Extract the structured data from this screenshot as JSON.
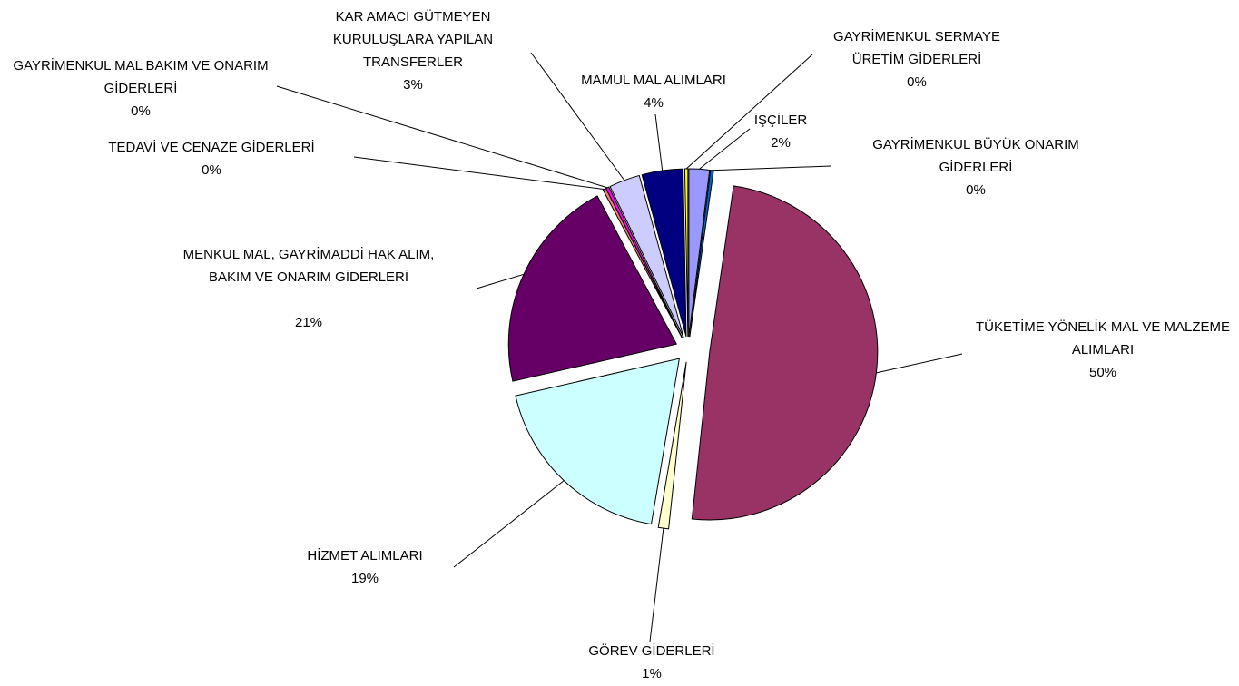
{
  "chart_data": {
    "type": "pie",
    "categories": [
      "İŞÇİLER",
      "GAYRİMENKUL BÜYÜK ONARIM GİDERLERİ",
      "TÜKETİME YÖNELİK MAL VE MALZEME ALIMLARI",
      "GÖREV GİDERLERİ",
      "HİZMET ALIMLARI",
      "MENKUL MAL, GAYRİMADDİ HAK ALIM, BAKIM VE ONARIM GİDERLERİ",
      "TEDAVİ VE CENAZE GİDERLERİ",
      "GAYRİMENKUL MAL BAKIM VE ONARIM GİDERLERİ",
      "KAR AMACI GÜTMEYEN KURULUŞLARA YAPILAN TRANSFERLER",
      "MAMUL MAL ALIMLARI",
      "GAYRİMENKUL SERMAYE ÜRETİM GİDERLERİ"
    ],
    "values": [
      2,
      0.3,
      50,
      1,
      19,
      21,
      0.3,
      0.3,
      3,
      4,
      0.3
    ],
    "value_labels": [
      "2%",
      "0%",
      "50%",
      "1%",
      "19%",
      "21%",
      "0%",
      "0%",
      "3%",
      "4%",
      "0%"
    ],
    "colors": [
      "#9999ff",
      "#0066cc",
      "#993366",
      "#ffffcc",
      "#ccffff",
      "#660066",
      "#ff8080",
      "#ff00ff",
      "#ccccff",
      "#000080",
      "#ffff00"
    ]
  }
}
